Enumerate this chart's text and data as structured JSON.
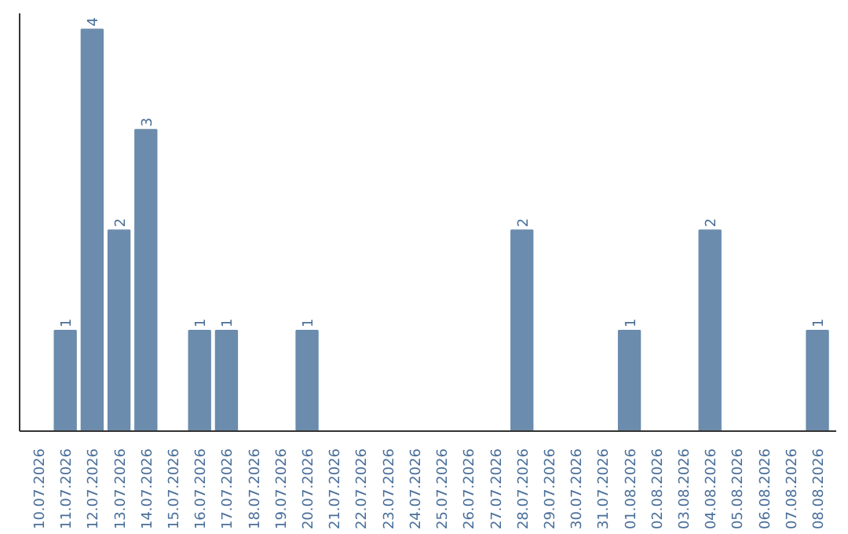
{
  "chart_data": {
    "type": "bar",
    "categories": [
      "10.07.2026",
      "11.07.2026",
      "12.07.2026",
      "13.07.2026",
      "14.07.2026",
      "15.07.2026",
      "16.07.2026",
      "17.07.2026",
      "18.07.2026",
      "19.07.2026",
      "20.07.2026",
      "21.07.2026",
      "22.07.2026",
      "23.07.2026",
      "24.07.2026",
      "25.07.2026",
      "26.07.2026",
      "27.07.2026",
      "28.07.2026",
      "29.07.2026",
      "30.07.2026",
      "31.07.2026",
      "01.08.2026",
      "02.08.2026",
      "03.08.2026",
      "04.08.2026",
      "05.08.2026",
      "06.08.2026",
      "07.08.2026",
      "08.08.2026"
    ],
    "values": [
      0,
      1,
      4,
      2,
      3,
      0,
      1,
      1,
      0,
      0,
      1,
      0,
      0,
      0,
      0,
      0,
      0,
      0,
      2,
      0,
      0,
      0,
      1,
      0,
      0,
      2,
      0,
      0,
      0,
      1
    ],
    "value_labels": [
      null,
      "1",
      "4",
      "2",
      "3",
      null,
      "1",
      "1",
      null,
      null,
      "1",
      null,
      null,
      null,
      null,
      null,
      null,
      null,
      "2",
      null,
      null,
      null,
      "1",
      null,
      null,
      "2",
      null,
      null,
      null,
      "1"
    ],
    "color": "#6b8cad",
    "grid": false
  }
}
